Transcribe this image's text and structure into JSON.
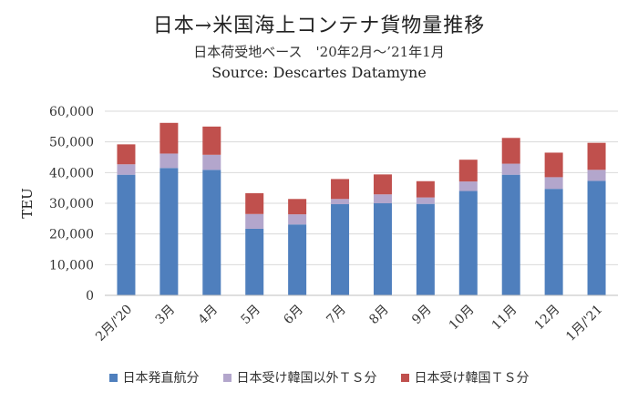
{
  "title": "日本→米国海上コンテナ貨物量推移",
  "subtitle": "日本荷受地ベース　'20年2月～’21年1月",
  "source": "Source: Descartes Datamyne",
  "chart_data": {
    "type": "bar",
    "stacked": true,
    "ylabel": "TEU",
    "ylim": [
      0,
      60000
    ],
    "yticks": [
      "0",
      "10,000",
      "20,000",
      "30,000",
      "40,000",
      "50,000",
      "60,000"
    ],
    "ytick_values": [
      0,
      10000,
      20000,
      30000,
      40000,
      50000,
      60000
    ],
    "categories": [
      "2月/'20",
      "3月",
      "4月",
      "5月",
      "6月",
      "7月",
      "8月",
      "9月",
      "10月",
      "11月",
      "12月",
      "1月/'21"
    ],
    "series": [
      {
        "name": "日本発直航分",
        "color": "#4f7fbd",
        "values": [
          39300,
          41500,
          40900,
          21700,
          23100,
          29700,
          30000,
          29800,
          34000,
          39300,
          34700,
          37300
        ]
      },
      {
        "name": "日本受け韓国以外ＴＳ分",
        "color": "#b3a6cc",
        "values": [
          3400,
          4700,
          4900,
          4800,
          3300,
          1700,
          2900,
          2100,
          3100,
          3600,
          3800,
          3600
        ]
      },
      {
        "name": "日本受け韓国ＴＳ分",
        "color": "#c0504d",
        "values": [
          6500,
          10000,
          9200,
          6800,
          5000,
          6500,
          6500,
          5300,
          7100,
          8400,
          8000,
          8800
        ]
      }
    ],
    "grid": true,
    "legend_position": "bottom"
  }
}
